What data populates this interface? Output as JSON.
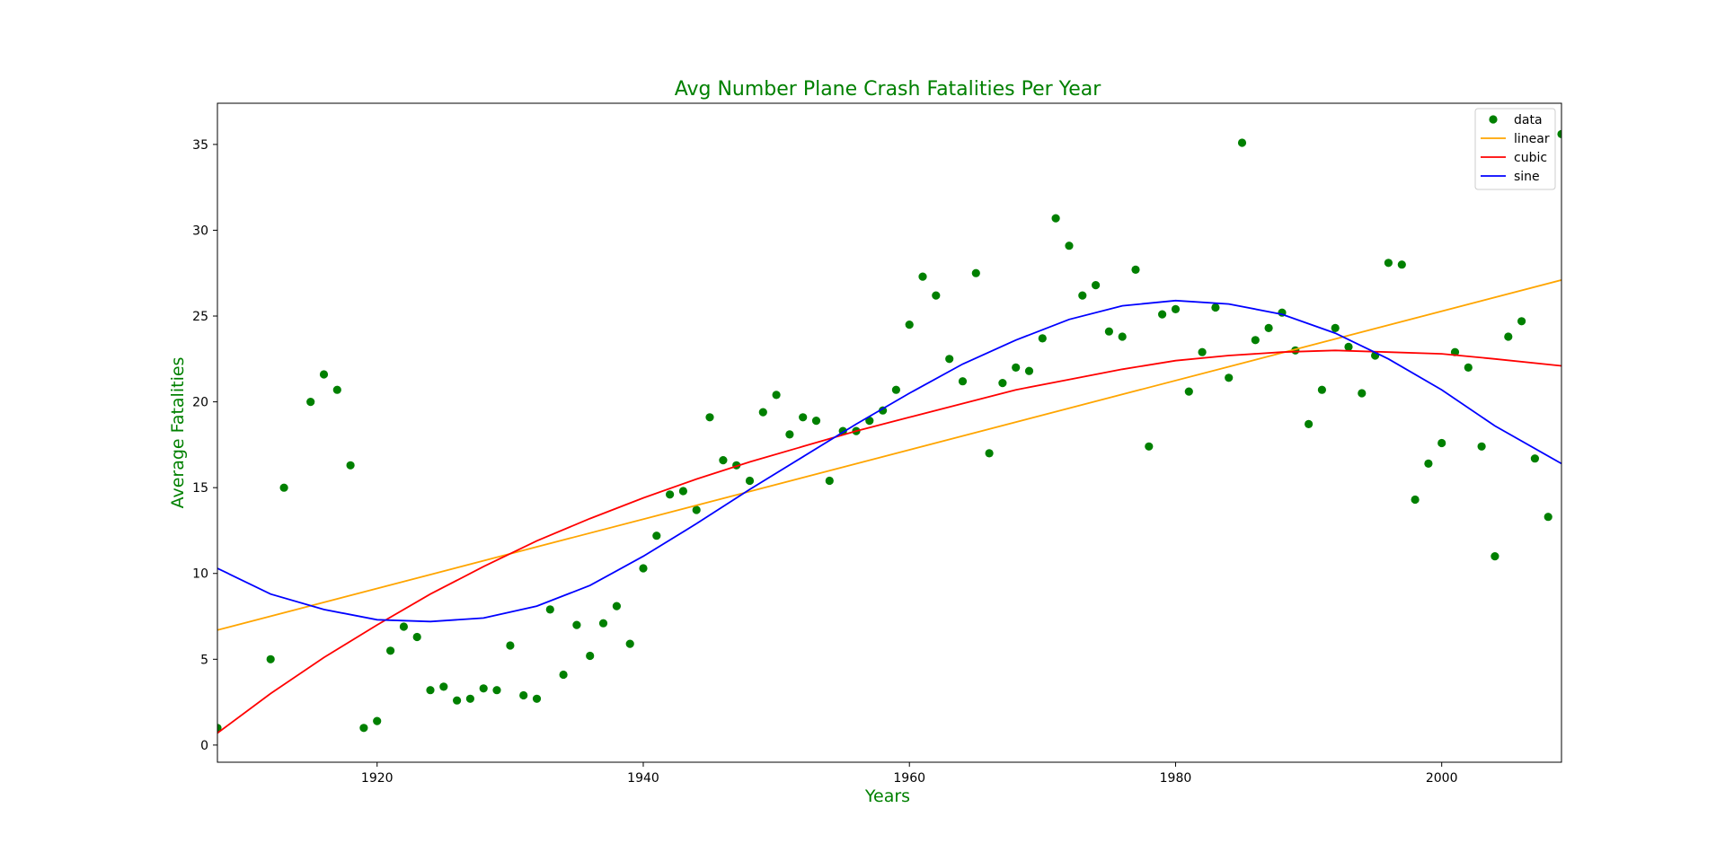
{
  "chart_data": {
    "type": "scatter",
    "title": "Avg Number Plane Crash Fatalities Per Year",
    "xlabel": "Years",
    "ylabel": "Average Fatalities",
    "xlim": [
      1908,
      2009
    ],
    "ylim": [
      -1,
      37.4
    ],
    "xticks": [
      1920,
      1940,
      1960,
      1980,
      2000
    ],
    "yticks": [
      0,
      5,
      10,
      15,
      20,
      25,
      30,
      35
    ],
    "grid": false,
    "legend_position": "top-right",
    "colors": {
      "data": "#008000",
      "linear": "#FFA500",
      "cubic": "#FF0000",
      "sine": "#0000FF",
      "title": "#008000"
    },
    "legend": [
      "data",
      "linear",
      "cubic",
      "sine"
    ],
    "points": {
      "x": [
        1908,
        1912,
        1913,
        1915,
        1916,
        1917,
        1918,
        1919,
        1920,
        1921,
        1922,
        1923,
        1924,
        1925,
        1926,
        1927,
        1928,
        1929,
        1930,
        1931,
        1932,
        1933,
        1934,
        1935,
        1936,
        1937,
        1938,
        1939,
        1940,
        1941,
        1942,
        1943,
        1944,
        1945,
        1946,
        1947,
        1948,
        1949,
        1950,
        1951,
        1952,
        1953,
        1954,
        1955,
        1956,
        1957,
        1958,
        1959,
        1960,
        1961,
        1962,
        1963,
        1964,
        1965,
        1966,
        1967,
        1968,
        1969,
        1970,
        1971,
        1972,
        1973,
        1974,
        1975,
        1976,
        1977,
        1978,
        1979,
        1980,
        1981,
        1982,
        1983,
        1984,
        1985,
        1986,
        1987,
        1988,
        1989,
        1990,
        1991,
        1992,
        1993,
        1994,
        1995,
        1996,
        1997,
        1998,
        1999,
        2000,
        2001,
        2002,
        2003,
        2004,
        2005,
        2006,
        2007,
        2008,
        2009
      ],
      "y": [
        1.0,
        5.0,
        15.0,
        20.0,
        21.6,
        20.7,
        16.3,
        1.0,
        1.4,
        5.5,
        6.9,
        6.3,
        3.2,
        3.4,
        2.6,
        2.7,
        3.3,
        3.2,
        5.8,
        2.9,
        2.7,
        7.9,
        4.1,
        7.0,
        5.2,
        7.1,
        8.1,
        5.9,
        10.3,
        12.2,
        14.6,
        14.8,
        13.7,
        19.1,
        16.6,
        16.3,
        15.4,
        19.4,
        20.4,
        18.1,
        19.1,
        18.9,
        15.4,
        18.3,
        18.3,
        18.9,
        19.5,
        20.7,
        24.5,
        27.3,
        26.2,
        22.5,
        21.2,
        27.5,
        17.0,
        21.1,
        22.0,
        21.8,
        23.7,
        30.7,
        29.1,
        26.2,
        26.8,
        24.1,
        23.8,
        27.7,
        17.4,
        25.1,
        25.4,
        20.6,
        22.9,
        25.5,
        21.4,
        35.1,
        23.6,
        24.3,
        25.2,
        23.0,
        18.7,
        20.7,
        24.3,
        23.2,
        20.5,
        22.7,
        28.1,
        28.0,
        14.3,
        16.4,
        17.6,
        22.9,
        22.0,
        17.4,
        11.0,
        23.8,
        24.7,
        16.7,
        13.3,
        35.6
      ]
    },
    "series": [
      {
        "name": "linear",
        "x": [
          1908,
          2009
        ],
        "y": [
          6.7,
          27.1
        ]
      },
      {
        "name": "cubic",
        "x": [
          1908,
          1912,
          1916,
          1920,
          1924,
          1928,
          1932,
          1936,
          1940,
          1944,
          1948,
          1952,
          1956,
          1960,
          1964,
          1968,
          1972,
          1976,
          1980,
          1984,
          1988,
          1992,
          1996,
          2000,
          2004,
          2009
        ],
        "y": [
          0.7,
          3.0,
          5.1,
          7.0,
          8.8,
          10.4,
          11.9,
          13.2,
          14.4,
          15.5,
          16.5,
          17.4,
          18.3,
          19.1,
          19.9,
          20.7,
          21.3,
          21.9,
          22.4,
          22.7,
          22.9,
          23.0,
          22.9,
          22.8,
          22.5,
          22.1
        ]
      },
      {
        "name": "sine",
        "x": [
          1908,
          1912,
          1916,
          1920,
          1924,
          1928,
          1932,
          1936,
          1940,
          1944,
          1948,
          1952,
          1956,
          1960,
          1964,
          1968,
          1972,
          1976,
          1980,
          1984,
          1988,
          1992,
          1996,
          2000,
          2004,
          2009
        ],
        "y": [
          10.3,
          8.8,
          7.9,
          7.3,
          7.2,
          7.4,
          8.1,
          9.3,
          11.0,
          12.9,
          14.9,
          16.8,
          18.7,
          20.5,
          22.2,
          23.6,
          24.8,
          25.6,
          25.9,
          25.7,
          25.1,
          24.0,
          22.5,
          20.7,
          18.6,
          16.4
        ]
      }
    ]
  }
}
